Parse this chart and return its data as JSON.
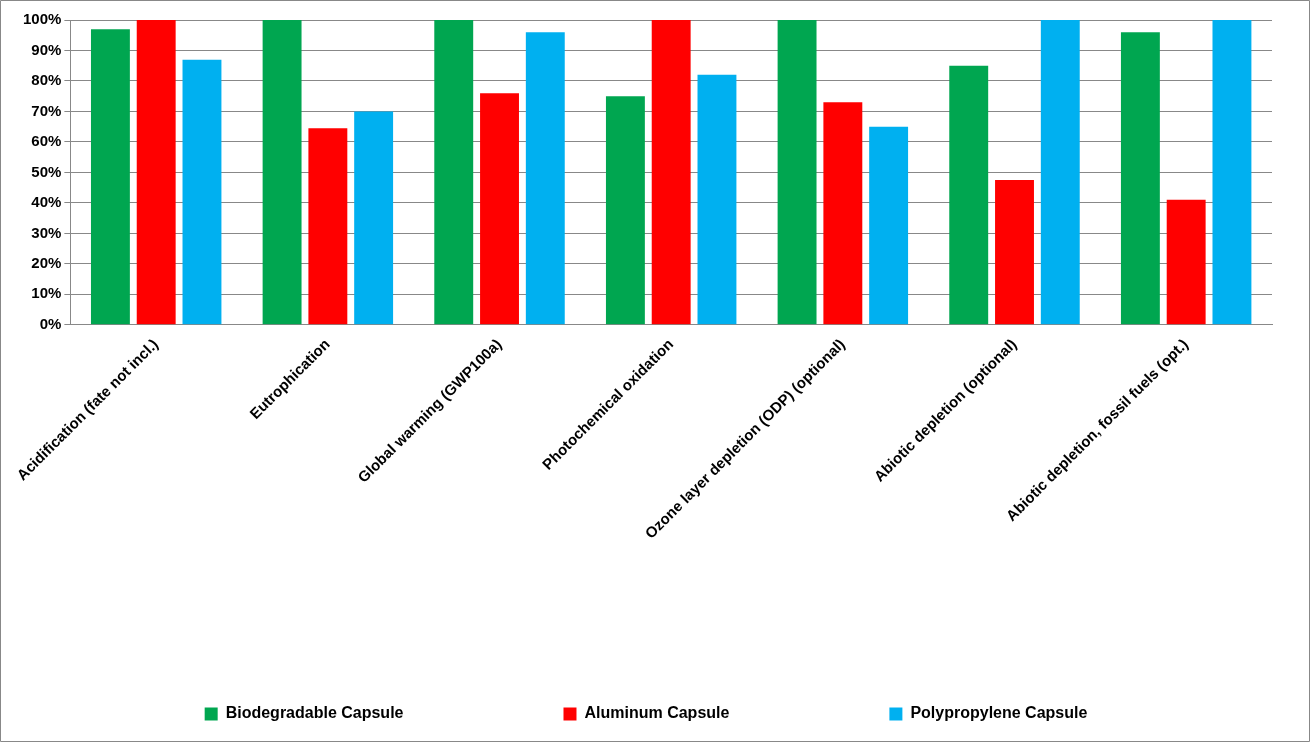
{
  "chart_data": {
    "type": "bar",
    "categories": [
      "Acidification (fate not incl.)",
      "Eutrophication",
      "Global warming (GWP100a)",
      "Photochemical oxidation",
      "Ozone layer depletion (ODP) (optional)",
      "Abiotic depletion (optional)",
      "Abiotic depletion, fossil fuels (opt.)"
    ],
    "series": [
      {
        "name": "Biodegradable Capsule",
        "color": "#00a650",
        "values": [
          97,
          100,
          100,
          75,
          100,
          85,
          96
        ]
      },
      {
        "name": "Aluminum Capsule",
        "color": "#ff0000",
        "values": [
          100,
          64.5,
          76,
          100,
          73,
          47.5,
          41
        ]
      },
      {
        "name": "Polypropylene Capsule",
        "color": "#00b0f0",
        "values": [
          87,
          70,
          96,
          82,
          65,
          100,
          100
        ]
      }
    ],
    "ylim": [
      0,
      100
    ],
    "yticks": [
      {
        "value": 0,
        "label": "0%"
      },
      {
        "value": 10,
        "label": "10%"
      },
      {
        "value": 20,
        "label": "20%"
      },
      {
        "value": 30,
        "label": "30%"
      },
      {
        "value": 40,
        "label": "40%"
      },
      {
        "value": 50,
        "label": "50%"
      },
      {
        "value": 60,
        "label": "60%"
      },
      {
        "value": 70,
        "label": "70%"
      },
      {
        "value": 80,
        "label": "80%"
      },
      {
        "value": 90,
        "label": "90%"
      },
      {
        "value": 100,
        "label": "100%"
      }
    ],
    "grid": "y",
    "legend": "bottom"
  }
}
